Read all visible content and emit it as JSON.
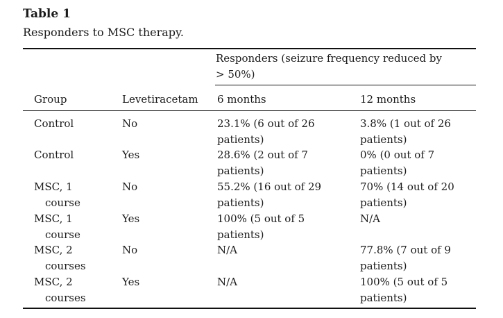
{
  "table": {
    "label": "Table 1",
    "caption": "Responders to MSC therapy.",
    "span_header_line1": "Responders (seizure frequency reduced by",
    "span_header_line2": "> 50%)",
    "headers": {
      "group": "Group",
      "levetiracetam": "Levetiracetam",
      "six_months": "6 months",
      "twelve_months": "12 months"
    },
    "rows": [
      {
        "group1": "Control",
        "group2": "",
        "lev": "No",
        "m6a": "23.1% (6 out of 26",
        "m6b": "patients)",
        "m12a": "3.8% (1 out of 26",
        "m12b": "patients)"
      },
      {
        "group1": "Control",
        "group2": "",
        "lev": "Yes",
        "m6a": "28.6% (2 out of 7",
        "m6b": "patients)",
        "m12a": "0% (0 out of 7",
        "m12b": "patients)"
      },
      {
        "group1": "MSC, 1",
        "group2": "course",
        "lev": "No",
        "m6a": "55.2% (16 out of 29",
        "m6b": "patients)",
        "m12a": "70% (14 out of 20",
        "m12b": "patients)"
      },
      {
        "group1": "MSC, 1",
        "group2": "course",
        "lev": "Yes",
        "m6a": "100% (5 out of 5",
        "m6b": "patients)",
        "m12a": "N/A",
        "m12b": ""
      },
      {
        "group1": "MSC, 2",
        "group2": "courses",
        "lev": "No",
        "m6a": "N/A",
        "m6b": "",
        "m12a": "77.8% (7 out of 9",
        "m12b": "patients)"
      },
      {
        "group1": "MSC, 2",
        "group2": "courses",
        "lev": "Yes",
        "m6a": "N/A",
        "m6b": "",
        "m12a": "100% (5 out of 5",
        "m12b": "patients)"
      }
    ]
  }
}
